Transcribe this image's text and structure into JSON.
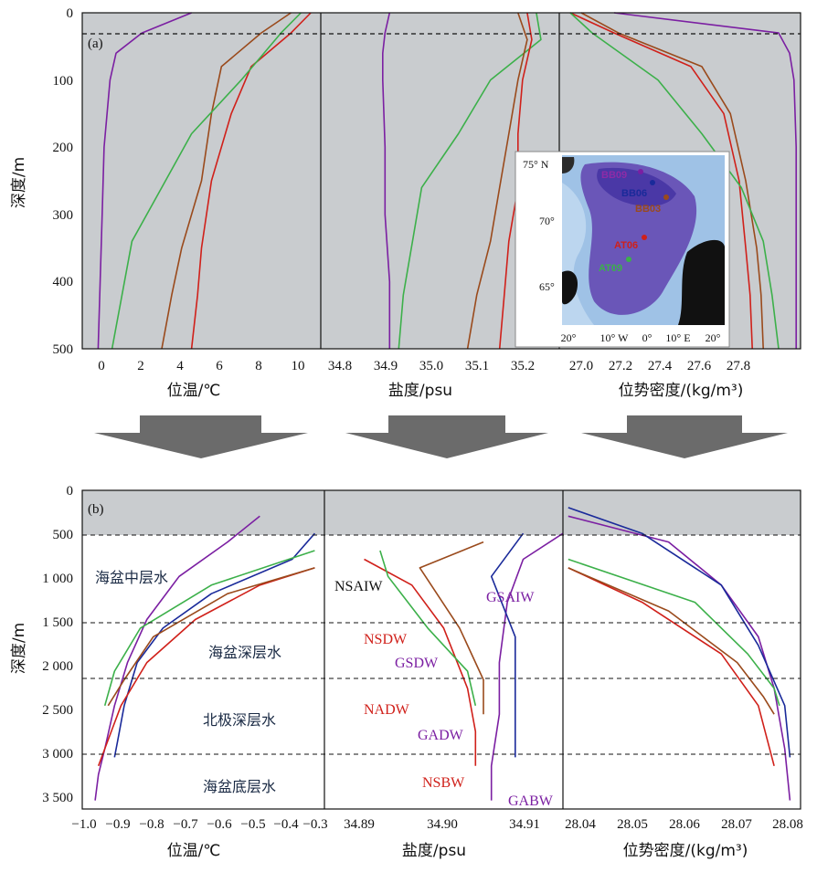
{
  "colors": {
    "purple": "#7b1fa2",
    "navy": "#1a2a9a",
    "brown": "#9a4a1c",
    "red": "#d0201a",
    "green": "#3cb04a",
    "shade": "#c9cccf",
    "arrow": "#6b6b6b"
  },
  "panel_a": {
    "label": "(a)",
    "y_ticks": [
      "0",
      "100",
      "200",
      "300",
      "400",
      "500"
    ],
    "ylabel": "深度/m",
    "temp_ticks": [
      "0",
      "2",
      "4",
      "6",
      "8",
      "10"
    ],
    "temp_label": "位温/℃",
    "sal_ticks": [
      "34.8",
      "34.9",
      "35.0",
      "35.1",
      "35.2"
    ],
    "sal_label": "盐度/psu",
    "dens_ticks": [
      "27.0",
      "27.2",
      "27.4",
      "27.6",
      "27.8"
    ],
    "dens_label": "位势密度/(kg/m³)"
  },
  "panel_b": {
    "label": "(b)",
    "y_ticks": [
      "0",
      "500",
      "1 000",
      "1 500",
      "2 000",
      "2 500",
      "3 000",
      "3 500"
    ],
    "ylabel": "深度/m",
    "temp_ticks": [
      "−1.0",
      "−0.9",
      "−0.8",
      "−0.7",
      "−0.6",
      "−0.5",
      "−0.4",
      "−0.3"
    ],
    "temp_label": "位温/℃",
    "sal_ticks": [
      "34.89",
      "34.90",
      "34.91"
    ],
    "sal_label": "盐度/psu",
    "dens_ticks": [
      "28.04",
      "28.05",
      "28.06",
      "28.07",
      "28.08"
    ],
    "dens_label": "位势密度/(kg/m³)",
    "zones": [
      "海盆中层水",
      "海盆深层水",
      "北极深层水",
      "海盆底层水"
    ],
    "water_masses": {
      "nsaiw": "NSAIW",
      "gsaiw": "GSAIW",
      "nsdw": "NSDW",
      "gsdw": "GSDW",
      "nadw": "NADW",
      "gadw": "GADW",
      "nsbw": "NSBW",
      "gabw": "GABW"
    }
  },
  "inset_map": {
    "lat_ticks": [
      "75° N",
      "70°",
      "65°"
    ],
    "lon_ticks": [
      "20°",
      "10° W",
      "0°",
      "10° E",
      "20°"
    ],
    "stations": [
      "BB09",
      "BB06",
      "BB03",
      "AT06",
      "AT09"
    ]
  },
  "chart_data": [
    {
      "type": "line",
      "panel": "a",
      "x_var": "potential temperature (°C)",
      "y_var": "depth (m)",
      "ylim": [
        500,
        0
      ],
      "xlim": [
        -1,
        11
      ],
      "series": [
        {
          "color": "purple",
          "x": [
            4.5,
            2.0,
            0.7,
            0.4,
            0.1,
            0.0,
            -0.1,
            -0.2
          ],
          "y": [
            0,
            30,
            60,
            100,
            200,
            300,
            400,
            500
          ]
        },
        {
          "color": "brown",
          "x": [
            9.5,
            8.0,
            6.0,
            5.5,
            5.0,
            4.0,
            3.5,
            3.0
          ],
          "y": [
            0,
            30,
            80,
            150,
            250,
            350,
            420,
            500
          ]
        },
        {
          "color": "red",
          "x": [
            10.5,
            9.5,
            7.5,
            6.5,
            5.5,
            5.0,
            4.8,
            4.5
          ],
          "y": [
            0,
            30,
            80,
            150,
            250,
            350,
            420,
            500
          ]
        },
        {
          "color": "green",
          "x": [
            10.0,
            9.0,
            7.0,
            4.5,
            3.0,
            1.5,
            1.0,
            0.5
          ],
          "y": [
            0,
            30,
            100,
            180,
            260,
            340,
            420,
            500
          ]
        }
      ]
    },
    {
      "type": "line",
      "panel": "a",
      "x_var": "salinity (psu)",
      "y_var": "depth (m)",
      "ylim": [
        500,
        0
      ],
      "xlim": [
        34.75,
        35.27
      ],
      "series": [
        {
          "color": "purple",
          "x": [
            34.9,
            34.89,
            34.885,
            34.885,
            34.89,
            34.89,
            34.9,
            34.9
          ],
          "y": [
            0,
            30,
            60,
            100,
            200,
            300,
            400,
            500
          ]
        },
        {
          "color": "green",
          "x": [
            35.22,
            35.23,
            35.12,
            35.05,
            34.97,
            34.95,
            34.93,
            34.92
          ],
          "y": [
            0,
            40,
            100,
            180,
            260,
            340,
            420,
            500
          ]
        },
        {
          "color": "brown",
          "x": [
            35.18,
            35.2,
            35.18,
            35.16,
            35.14,
            35.12,
            35.09,
            35.07
          ],
          "y": [
            0,
            40,
            100,
            180,
            260,
            340,
            420,
            500
          ]
        },
        {
          "color": "red",
          "x": [
            35.2,
            35.21,
            35.19,
            35.18,
            35.18,
            35.16,
            35.15,
            35.14
          ],
          "y": [
            0,
            40,
            100,
            180,
            260,
            340,
            420,
            500
          ]
        }
      ]
    },
    {
      "type": "line",
      "panel": "a",
      "x_var": "potential density (kg/m³)",
      "y_var": "depth (m)",
      "ylim": [
        500,
        0
      ],
      "xlim": [
        26.95,
        28.05
      ],
      "series": [
        {
          "color": "purple",
          "x": [
            27.2,
            27.95,
            28.0,
            28.02,
            28.03,
            28.03,
            28.03,
            28.03
          ],
          "y": [
            0,
            30,
            60,
            100,
            200,
            300,
            400,
            500
          ]
        },
        {
          "color": "red",
          "x": [
            27.0,
            27.2,
            27.55,
            27.7,
            27.77,
            27.8,
            27.82,
            27.83
          ],
          "y": [
            0,
            30,
            80,
            150,
            250,
            350,
            420,
            500
          ]
        },
        {
          "color": "brown",
          "x": [
            27.05,
            27.22,
            27.6,
            27.73,
            27.8,
            27.85,
            27.87,
            27.88
          ],
          "y": [
            0,
            30,
            80,
            150,
            250,
            350,
            420,
            500
          ]
        },
        {
          "color": "green",
          "x": [
            27.0,
            27.1,
            27.4,
            27.6,
            27.78,
            27.88,
            27.92,
            27.95
          ],
          "y": [
            0,
            30,
            100,
            180,
            260,
            340,
            420,
            500
          ]
        }
      ]
    },
    {
      "type": "line",
      "panel": "b",
      "x_var": "potential temperature (°C)",
      "y_var": "depth (m)",
      "ylim": [
        3700,
        0
      ],
      "xlim": [
        -1.0,
        -0.25
      ],
      "series": [
        {
          "color": "purple",
          "x": [
            -0.45,
            -0.55,
            -0.7,
            -0.8,
            -0.86,
            -0.9,
            -0.93,
            -0.95,
            -0.96
          ],
          "y": [
            300,
            600,
            1000,
            1500,
            2000,
            2500,
            3000,
            3300,
            3600
          ]
        },
        {
          "color": "navy",
          "x": [
            -0.28,
            -0.35,
            -0.6,
            -0.75,
            -0.83,
            -0.87,
            -0.89,
            -0.9
          ],
          "y": [
            500,
            800,
            1200,
            1600,
            2000,
            2500,
            2900,
            3100
          ]
        },
        {
          "color": "red",
          "x": [
            -0.28,
            -0.45,
            -0.65,
            -0.8,
            -0.88,
            -0.93,
            -0.95
          ],
          "y": [
            900,
            1100,
            1500,
            2000,
            2500,
            3000,
            3200
          ]
        },
        {
          "color": "brown",
          "x": [
            -0.28,
            -0.55,
            -0.78,
            -0.87,
            -0.92
          ],
          "y": [
            900,
            1200,
            1700,
            2200,
            2500
          ]
        },
        {
          "color": "green",
          "x": [
            -0.28,
            -0.6,
            -0.82,
            -0.9,
            -0.93
          ],
          "y": [
            700,
            1100,
            1600,
            2100,
            2500
          ]
        }
      ]
    },
    {
      "type": "line",
      "panel": "b",
      "x_var": "salinity (psu)",
      "y_var": "depth (m)",
      "ylim": [
        3700,
        0
      ],
      "xlim": [
        34.885,
        34.915
      ],
      "series": [
        {
          "color": "purple",
          "x": [
            34.915,
            34.91,
            34.908,
            34.907,
            34.907,
            34.906,
            34.906
          ],
          "y": [
            500,
            800,
            1300,
            2000,
            2600,
            3200,
            3600
          ]
        },
        {
          "color": "navy",
          "x": [
            34.91,
            34.906,
            34.909,
            34.909,
            34.909,
            34.909
          ],
          "y": [
            500,
            1000,
            1700,
            2300,
            2800,
            3100
          ]
        },
        {
          "color": "red",
          "x": [
            34.89,
            34.896,
            34.9,
            34.903,
            34.904,
            34.904
          ],
          "y": [
            800,
            1100,
            1600,
            2300,
            2800,
            3200
          ]
        },
        {
          "color": "brown",
          "x": [
            34.905,
            34.897,
            34.902,
            34.905,
            34.905
          ],
          "y": [
            600,
            900,
            1600,
            2200,
            2600
          ]
        },
        {
          "color": "green",
          "x": [
            34.892,
            34.893,
            34.898,
            34.903,
            34.904
          ],
          "y": [
            700,
            1000,
            1600,
            2100,
            2500
          ]
        }
      ]
    },
    {
      "type": "line",
      "panel": "b",
      "x_var": "potential density (kg/m³)",
      "y_var": "depth (m)",
      "ylim": [
        3700,
        0
      ],
      "xlim": [
        28.035,
        28.08
      ],
      "series": [
        {
          "color": "purple",
          "x": [
            28.036,
            28.055,
            28.065,
            28.072,
            28.075,
            28.077,
            28.078
          ],
          "y": [
            300,
            600,
            1100,
            1700,
            2300,
            3000,
            3600
          ]
        },
        {
          "color": "navy",
          "x": [
            28.036,
            28.05,
            28.065,
            28.072,
            28.077,
            28.078
          ],
          "y": [
            200,
            500,
            1100,
            1800,
            2500,
            3100
          ]
        },
        {
          "color": "red",
          "x": [
            28.036,
            28.05,
            28.065,
            28.072,
            28.075
          ],
          "y": [
            900,
            1300,
            1900,
            2500,
            3200
          ]
        },
        {
          "color": "brown",
          "x": [
            28.036,
            28.055,
            28.068,
            28.073,
            28.075
          ],
          "y": [
            900,
            1400,
            2000,
            2400,
            2600
          ]
        },
        {
          "color": "green",
          "x": [
            28.036,
            28.06,
            28.07,
            28.075,
            28.076
          ],
          "y": [
            800,
            1300,
            1900,
            2300,
            2500
          ]
        }
      ]
    }
  ]
}
